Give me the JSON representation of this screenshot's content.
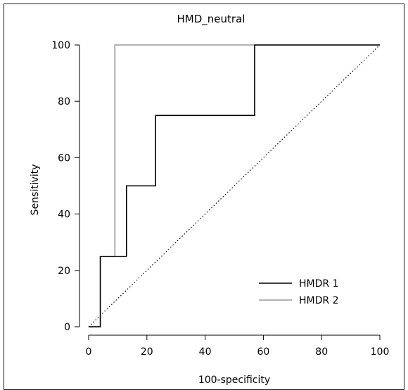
{
  "chart_data": {
    "type": "line",
    "title": "HMD_neutral",
    "xlabel": "100-specificity",
    "ylabel": "Sensitivity",
    "xlim": [
      0,
      100
    ],
    "ylim": [
      0,
      100
    ],
    "x_ticks": [
      "0",
      "20",
      "40",
      "60",
      "80",
      "100"
    ],
    "y_ticks": [
      "0",
      "20",
      "40",
      "60",
      "80",
      "100"
    ],
    "grid": false,
    "legend_position": "bottom-right",
    "series": [
      {
        "name": "HMDR 1",
        "color": "#000000",
        "x": [
          0,
          4,
          4,
          9,
          9,
          13,
          13,
          23,
          23,
          57,
          57,
          100
        ],
        "y": [
          0,
          0,
          25,
          25,
          25,
          25,
          50,
          50,
          75,
          75,
          100,
          100
        ]
      },
      {
        "name": "HMDR 2",
        "color": "#999999",
        "x": [
          0,
          4,
          4,
          9,
          9,
          100
        ],
        "y": [
          0,
          0,
          25,
          25,
          100,
          100
        ]
      }
    ],
    "reference_line": {
      "x": [
        0,
        100
      ],
      "y": [
        0,
        100
      ],
      "style": "dotted",
      "color": "#000000"
    }
  }
}
